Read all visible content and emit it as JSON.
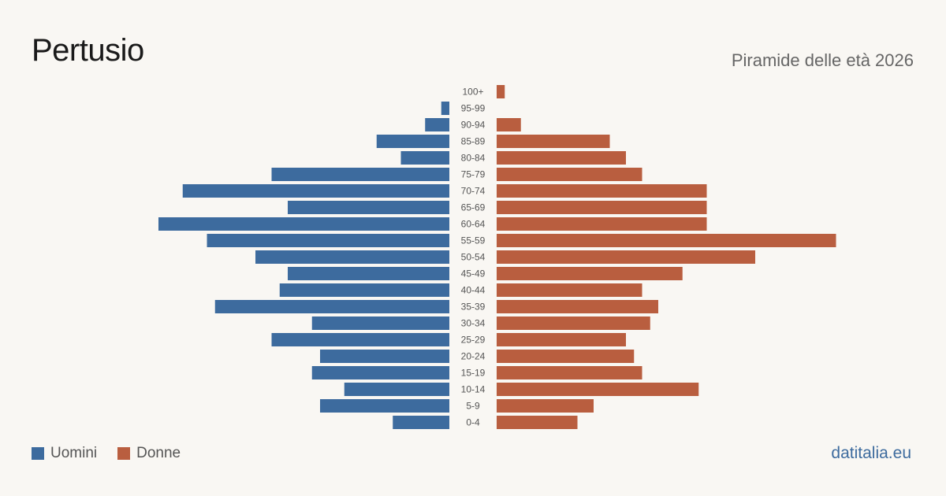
{
  "header": {
    "title": "Pertusio",
    "subtitle": "Piramide delle età 2026"
  },
  "legend": {
    "men_label": "Uomini",
    "women_label": "Donne"
  },
  "footer": {
    "brand": "datitalia.eu"
  },
  "colors": {
    "men": "#3d6b9e",
    "women": "#b95e3f",
    "background": "#f9f7f3"
  },
  "chart_data": {
    "type": "bar",
    "orientation": "horizontal",
    "layout": "population-pyramid",
    "categories": [
      "100+",
      "95-99",
      "90-94",
      "85-89",
      "80-84",
      "75-79",
      "70-74",
      "65-69",
      "60-64",
      "55-59",
      "50-54",
      "45-49",
      "40-44",
      "35-39",
      "30-34",
      "25-29",
      "20-24",
      "15-19",
      "10-14",
      "5-9",
      "0-4"
    ],
    "series": [
      {
        "name": "Uomini",
        "values": [
          0,
          1,
          3,
          9,
          6,
          22,
          33,
          20,
          36,
          30,
          24,
          20,
          21,
          29,
          17,
          22,
          16,
          17,
          13,
          16,
          7
        ]
      },
      {
        "name": "Donne",
        "values": [
          1,
          0,
          3,
          14,
          16,
          18,
          26,
          26,
          26,
          42,
          32,
          23,
          18,
          20,
          19,
          16,
          17,
          18,
          25,
          12,
          10
        ]
      }
    ],
    "legend_position": "bottom-left",
    "grid": false
  }
}
